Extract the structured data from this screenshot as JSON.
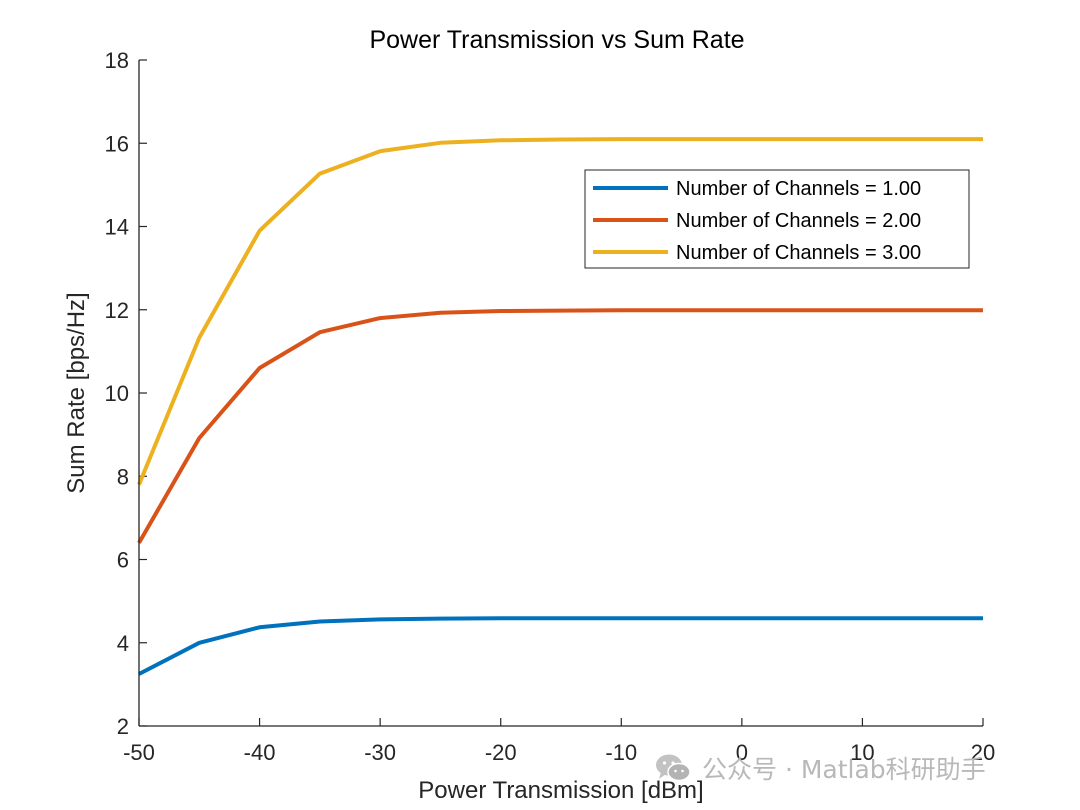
{
  "chart_data": {
    "type": "line",
    "title": "Power Transmission vs Sum Rate",
    "xlabel": "Power Transmission [dBm]",
    "ylabel": "Sum Rate [bps/Hz]",
    "xlim": [
      -50,
      20
    ],
    "ylim": [
      2,
      18
    ],
    "xticks": [
      -50,
      -40,
      -30,
      -20,
      -10,
      0,
      10,
      20
    ],
    "yticks": [
      2,
      4,
      6,
      8,
      10,
      12,
      14,
      16,
      18
    ],
    "grid": false,
    "legend_position": "top-right",
    "x": [
      -50,
      -45,
      -40,
      -35,
      -30,
      -25,
      -20,
      -15,
      -10,
      -5,
      0,
      5,
      10,
      15,
      20
    ],
    "series": [
      {
        "name": "Number of Channels = 1.00",
        "color": "#0072BD",
        "values": [
          3.25,
          4.0,
          4.37,
          4.51,
          4.56,
          4.58,
          4.59,
          4.59,
          4.59,
          4.59,
          4.59,
          4.59,
          4.59,
          4.59,
          4.59
        ]
      },
      {
        "name": "Number of Channels = 2.00",
        "color": "#D95319",
        "values": [
          6.4,
          8.92,
          10.6,
          11.46,
          11.8,
          11.93,
          11.97,
          11.98,
          11.99,
          11.99,
          11.99,
          11.99,
          11.99,
          11.99,
          11.99
        ]
      },
      {
        "name": "Number of Channels = 3.00",
        "color": "#EDB120",
        "values": [
          7.8,
          11.33,
          13.9,
          15.27,
          15.81,
          16.01,
          16.07,
          16.09,
          16.1,
          16.1,
          16.1,
          16.1,
          16.1,
          16.1,
          16.1
        ]
      }
    ]
  },
  "watermark": {
    "icon": "wechat-icon",
    "text": "公众号 · Matlab科研助手"
  }
}
